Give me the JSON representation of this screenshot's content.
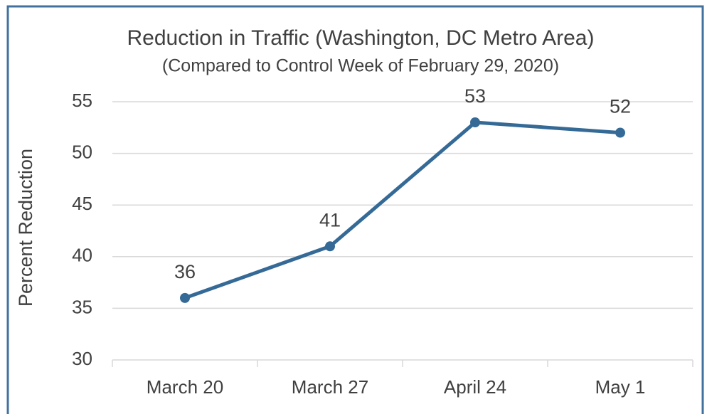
{
  "chart_data": {
    "type": "line",
    "title": "Reduction in Traffic (Washington, DC Metro Area)",
    "subtitle": "(Compared to Control Week of February 29, 2020)",
    "y_label": "Percent Reduction",
    "categories": [
      "March 20",
      "March 27",
      "April 24",
      "May 1"
    ],
    "values": [
      36,
      41,
      53,
      52
    ],
    "color": "#356a96",
    "ylim": [
      30,
      55
    ],
    "yticks": [
      30,
      35,
      40,
      45,
      50,
      55
    ],
    "grid": true
  }
}
